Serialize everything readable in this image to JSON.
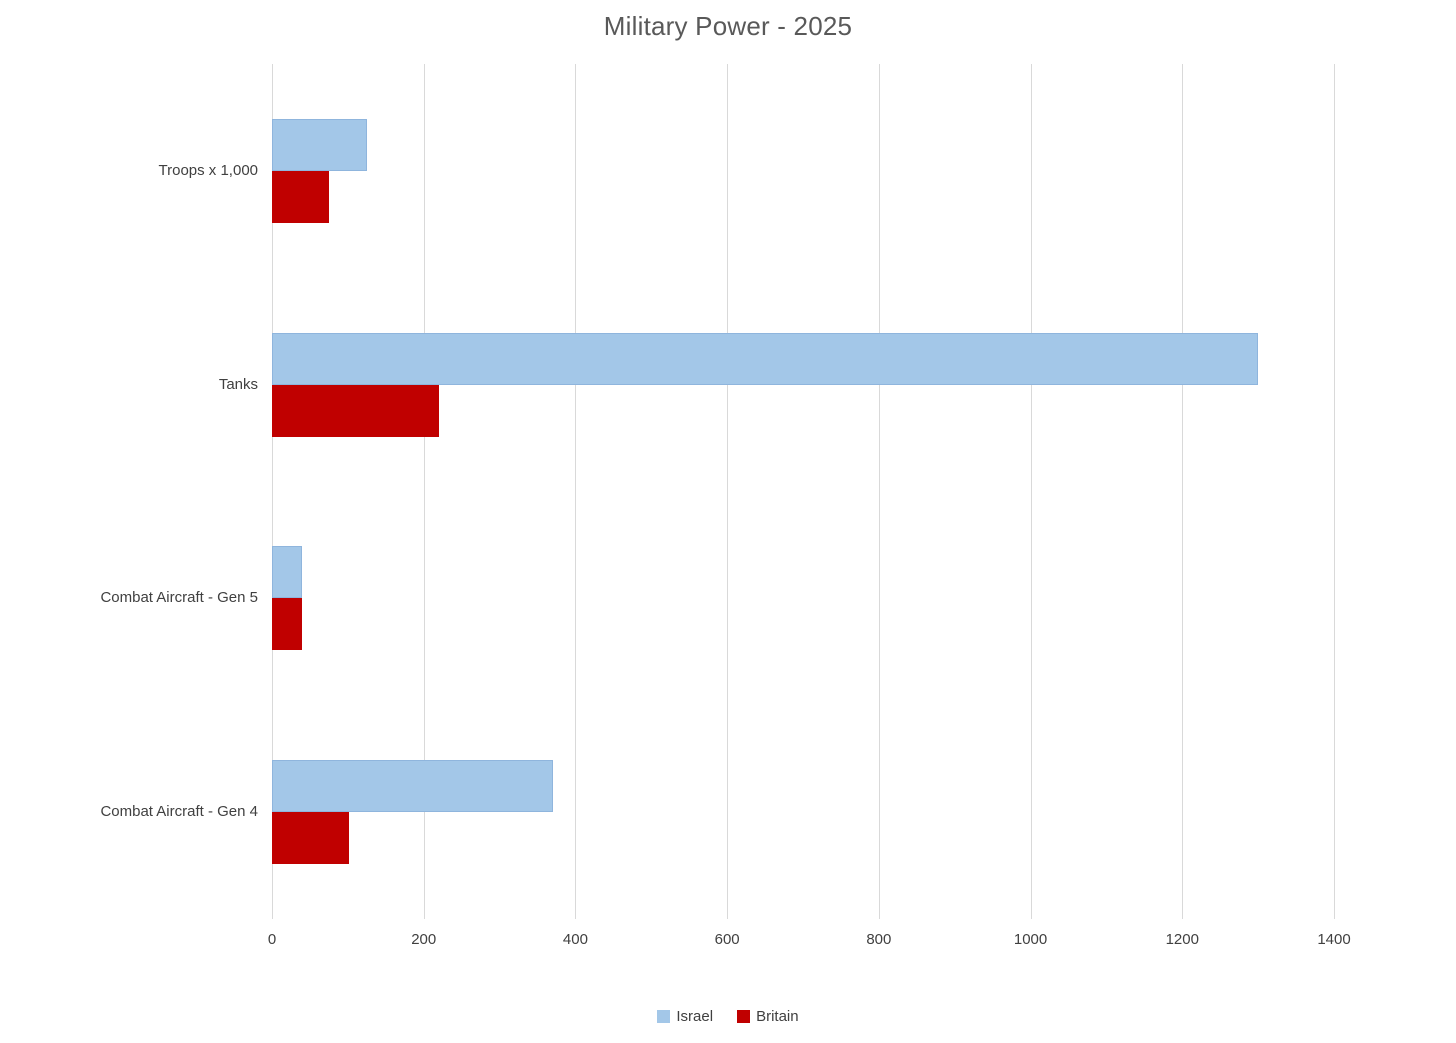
{
  "chart_data": {
    "type": "bar",
    "orientation": "horizontal",
    "title": "Military Power - 2025",
    "categories": [
      "Troops x 1,000",
      "Tanks",
      "Combat Aircraft - Gen 5",
      "Combat Aircraft - Gen 4"
    ],
    "series": [
      {
        "name": "Israel",
        "color": "#a3c7e8",
        "values": [
          125,
          1300,
          39,
          370
        ]
      },
      {
        "name": "Britain",
        "color": "#c00000",
        "values": [
          75,
          220,
          40,
          102
        ]
      }
    ],
    "xlim": [
      0,
      1400
    ],
    "xticks": [
      0,
      200,
      400,
      600,
      800,
      1000,
      1200,
      1400
    ],
    "xtick_labels": [
      "0",
      "200",
      "400",
      "600",
      "800",
      "1000",
      "1200",
      "1400"
    ],
    "grid": true,
    "legend_position": "bottom",
    "colors": {
      "title_text": "#595959",
      "axis_text": "#404040",
      "gridline": "#d9d9d9",
      "background": "#ffffff"
    }
  }
}
